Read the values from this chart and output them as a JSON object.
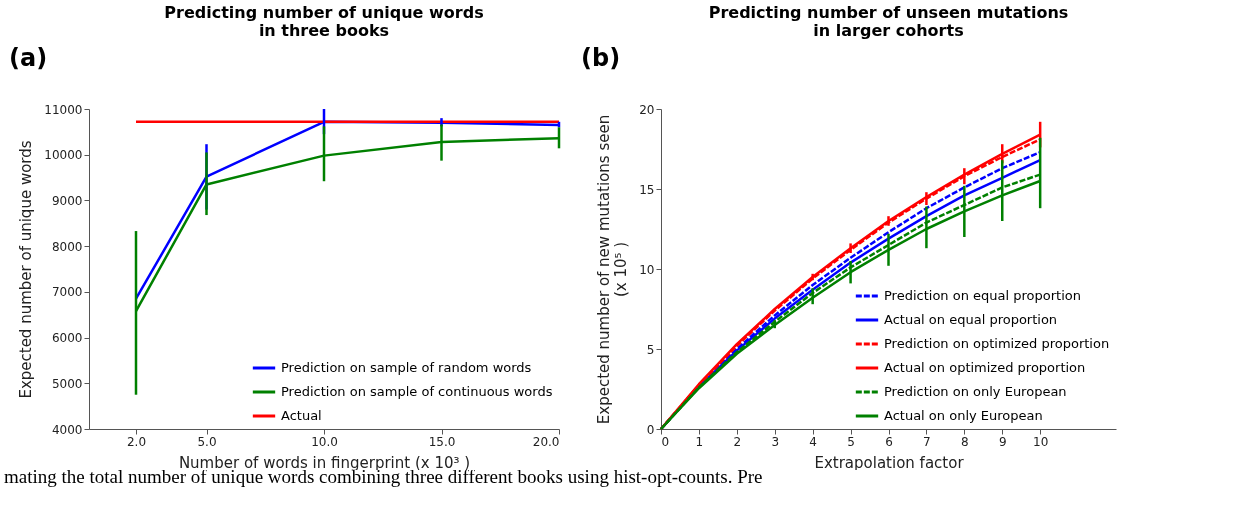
{
  "chart_data": [
    {
      "type": "line",
      "title": "Predicting number of unique words\nin three books",
      "xlabel": "Number of words in fingerprint (x 10³ )",
      "ylabel": "Expected number of unique words",
      "x": [
        2,
        5,
        10,
        15,
        20
      ],
      "xlim": [
        0,
        20
      ],
      "xticks": [
        {
          "value": 2,
          "label": "2.0"
        },
        {
          "value": 5,
          "label": "5.0"
        },
        {
          "value": 10,
          "label": "10.0"
        },
        {
          "value": 15,
          "label": "15.0"
        },
        {
          "value": 20,
          "label": "20.0"
        }
      ],
      "ylim": [
        4000,
        11000
      ],
      "yticks": [
        4000,
        5000,
        6000,
        7000,
        8000,
        9000,
        10000,
        11000
      ],
      "series": [
        {
          "name": "Prediction on sample of random words",
          "color": "#0000ff",
          "line_style": "solid",
          "values": [
            6850,
            9520,
            10720,
            10700,
            10650
          ],
          "errors": [
            null,
            [
              8800,
              10230
            ],
            [
              10450,
              11000
            ],
            [
              10620,
              10800
            ],
            [
              10600,
              10720
            ]
          ]
        },
        {
          "name": "Prediction on sample of continuous words",
          "color": "#008000",
          "line_style": "solid",
          "values": [
            6580,
            9350,
            9980,
            10280,
            10360
          ],
          "errors": [
            [
              4750,
              8330
            ],
            [
              8680,
              10050
            ],
            [
              9420,
              10620
            ],
            [
              9870,
              10660
            ],
            [
              10140,
              10600
            ]
          ]
        },
        {
          "name": "Actual",
          "color": "#ff0000",
          "line_style": "solid",
          "values": [
            10720,
            10720,
            10720,
            10720,
            10720
          ]
        }
      ],
      "legend": "bottom right",
      "grid": false,
      "annotations": [
        "(a)",
        "mating the total number of unique words combining three different books using hist-opt-counts. Pre"
      ]
    },
    {
      "type": "line",
      "title": "Predicting number of unseen mutations\nin larger cohorts",
      "xlabel": "Extrapolation factor",
      "ylabel": "Expected number of new mutations seen\n(x 10⁵ )",
      "x": [
        0,
        1,
        2,
        3,
        4,
        5,
        6,
        7,
        8,
        9,
        10
      ],
      "xlim": [
        0,
        12
      ],
      "xticks": [
        0,
        1,
        2,
        3,
        4,
        5,
        6,
        7,
        8,
        9,
        10
      ],
      "ylim": [
        0,
        20
      ],
      "yticks": [
        0,
        5,
        10,
        15,
        20
      ],
      "series": [
        {
          "name": "Prediction on equal proportion",
          "color": "#0000ff",
          "line_style": "dashed",
          "values": [
            0,
            2.7,
            5.0,
            7.1,
            9.0,
            10.7,
            12.3,
            13.8,
            15.1,
            16.3,
            17.3
          ]
        },
        {
          "name": "Actual on equal proportion",
          "color": "#0000ff",
          "line_style": "solid",
          "values": [
            0,
            2.65,
            4.9,
            6.9,
            8.7,
            10.4,
            11.9,
            13.3,
            14.6,
            15.7,
            16.8
          ]
        },
        {
          "name": "Prediction on optimized proportion",
          "color": "#ff0000",
          "line_style": "dashed",
          "values": [
            0,
            2.75,
            5.2,
            7.4,
            9.4,
            11.2,
            12.9,
            14.4,
            15.8,
            17.0,
            18.1
          ]
        },
        {
          "name": "Actual on optimized proportion",
          "color": "#ff0000",
          "line_style": "solid",
          "values": [
            0,
            2.8,
            5.3,
            7.5,
            9.5,
            11.3,
            13.0,
            14.5,
            15.9,
            17.2,
            18.4
          ],
          "errors": [
            null,
            null,
            null,
            null,
            [
              9.3,
              9.7
            ],
            [
              11.0,
              11.6
            ],
            [
              12.7,
              13.3
            ],
            [
              14.0,
              14.8
            ],
            [
              15.3,
              16.3
            ],
            [
              16.6,
              17.8
            ],
            [
              17.6,
              19.2
            ]
          ]
        },
        {
          "name": "Prediction on only European",
          "color": "#008000",
          "line_style": "dashed",
          "values": [
            0,
            2.6,
            4.8,
            6.7,
            8.5,
            10.1,
            11.5,
            12.9,
            14.0,
            15.1,
            15.9
          ]
        },
        {
          "name": "Actual on only European",
          "color": "#008000",
          "line_style": "solid",
          "values": [
            0,
            2.55,
            4.7,
            6.5,
            8.2,
            9.8,
            11.2,
            12.5,
            13.6,
            14.6,
            15.5
          ],
          "errors": [
            null,
            null,
            null,
            [
              6.3,
              6.8
            ],
            [
              7.8,
              8.8
            ],
            [
              9.1,
              10.5
            ],
            [
              10.2,
              12.2
            ],
            [
              11.3,
              13.9
            ],
            [
              12.0,
              15.2
            ],
            [
              13.0,
              16.8
            ],
            [
              13.8,
              18.2
            ]
          ]
        }
      ],
      "legend": "bottom right",
      "grid": false,
      "annotations": [
        "(b)"
      ]
    }
  ]
}
